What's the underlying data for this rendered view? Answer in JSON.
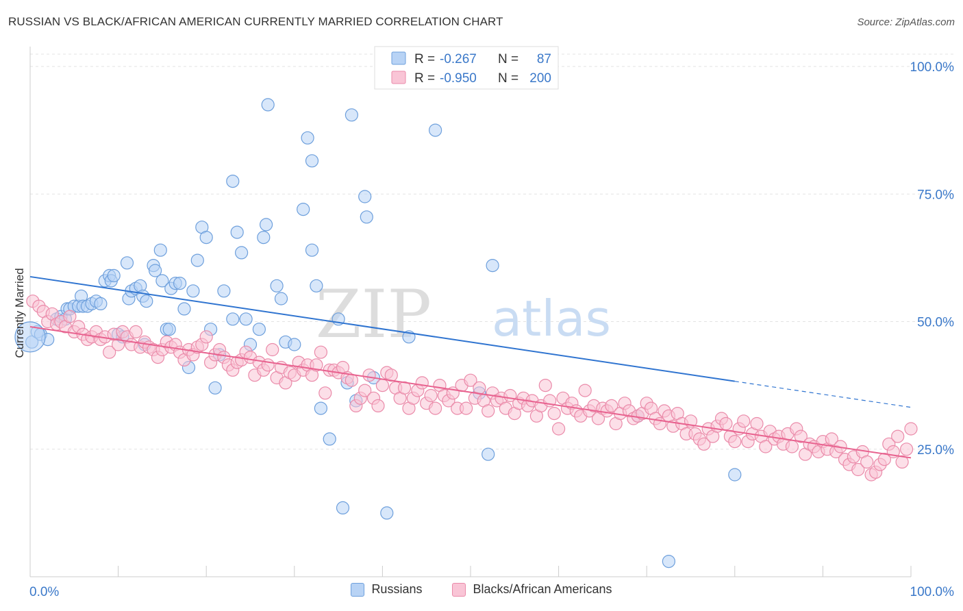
{
  "header": {
    "title": "RUSSIAN VS BLACK/AFRICAN AMERICAN CURRENTLY MARRIED CORRELATION CHART",
    "source": "Source: ZipAtlas.com"
  },
  "watermark": {
    "zip": "ZIP",
    "atlas": "atlas"
  },
  "stats": {
    "r_label": "R =",
    "n_label": "N =",
    "russians": {
      "r": "-0.267",
      "n": "87"
    },
    "blacks": {
      "r": "-0.950",
      "n": "200"
    }
  },
  "legend": {
    "russians": "Russians",
    "blacks": "Blacks/African Americans"
  },
  "colors": {
    "blue_fill": "#b8d3f5",
    "blue_stroke": "#6d9fdc",
    "blue_line": "#2f74d0",
    "pink_fill": "#f9c5d6",
    "pink_stroke": "#ea8aa9",
    "pink_line": "#e8628f",
    "accent_text": "#3a78c9"
  },
  "chart_data": {
    "type": "scatter",
    "title": "RUSSIAN VS BLACK/AFRICAN AMERICAN CURRENTLY MARRIED CORRELATION CHART",
    "xlabel": "",
    "ylabel": "Currently Married",
    "xlim": [
      0,
      100
    ],
    "ylim": [
      0,
      103
    ],
    "x_tick_labels": [
      "0.0%",
      "100.0%"
    ],
    "y_ticks": [
      25,
      50,
      75,
      100
    ],
    "y_tick_labels": [
      "25.0%",
      "50.0%",
      "75.0%",
      "100.0%"
    ],
    "grid": true,
    "series": [
      {
        "name": "Russians",
        "r": -0.267,
        "n": 87,
        "trend": {
          "x0": 0,
          "y0": 58.8,
          "x1": 80,
          "y1": 38.3,
          "dash_to_x": 100,
          "dash_to_y": 33.2
        },
        "points": [
          [
            0.2,
            46
          ],
          [
            0.8,
            48
          ],
          [
            1.2,
            47.5
          ],
          [
            2,
            46.5
          ],
          [
            3,
            50.5
          ],
          [
            3.5,
            51
          ],
          [
            4,
            50.5
          ],
          [
            4.2,
            52.5
          ],
          [
            4.5,
            52.5
          ],
          [
            5,
            53
          ],
          [
            5.5,
            53
          ],
          [
            5.8,
            55
          ],
          [
            6,
            53
          ],
          [
            6.5,
            53
          ],
          [
            7,
            53.5
          ],
          [
            7.5,
            54
          ],
          [
            8,
            53.5
          ],
          [
            8.5,
            58
          ],
          [
            9,
            59
          ],
          [
            9.2,
            58
          ],
          [
            9.5,
            59
          ],
          [
            10,
            47.5
          ],
          [
            10.5,
            47
          ],
          [
            11,
            61.5
          ],
          [
            11.2,
            54.5
          ],
          [
            11.5,
            56
          ],
          [
            12,
            56.5
          ],
          [
            12.5,
            57
          ],
          [
            12.8,
            55
          ],
          [
            13,
            45.5
          ],
          [
            13.2,
            54
          ],
          [
            14,
            61
          ],
          [
            14.2,
            60
          ],
          [
            14.8,
            64
          ],
          [
            15,
            58
          ],
          [
            15.5,
            48.5
          ],
          [
            15.8,
            48.5
          ],
          [
            16,
            56.5
          ],
          [
            16.5,
            57.5
          ],
          [
            17,
            57.5
          ],
          [
            17.5,
            52.5
          ],
          [
            18,
            41
          ],
          [
            18.5,
            56
          ],
          [
            19,
            62
          ],
          [
            19.5,
            68.5
          ],
          [
            20,
            66.5
          ],
          [
            20.5,
            48.5
          ],
          [
            21,
            37
          ],
          [
            21.5,
            43.5
          ],
          [
            22,
            56
          ],
          [
            23,
            77.5
          ],
          [
            23.5,
            67.5
          ],
          [
            24,
            63.5
          ],
          [
            23,
            50.5
          ],
          [
            24.5,
            50.5
          ],
          [
            25,
            45.5
          ],
          [
            26,
            48.5
          ],
          [
            26.5,
            66.5
          ],
          [
            26.8,
            69
          ],
          [
            27,
            92.5
          ],
          [
            28,
            57
          ],
          [
            28.5,
            54.5
          ],
          [
            29,
            46
          ],
          [
            30,
            45.5
          ],
          [
            31,
            72
          ],
          [
            31.5,
            86
          ],
          [
            32,
            64
          ],
          [
            32,
            81.5
          ],
          [
            32.5,
            57
          ],
          [
            33,
            33
          ],
          [
            34,
            27
          ],
          [
            35,
            50.5
          ],
          [
            35.5,
            13.5
          ],
          [
            36,
            38
          ],
          [
            36.5,
            90.5
          ],
          [
            37,
            34.5
          ],
          [
            38,
            74.5
          ],
          [
            38.2,
            70.5
          ],
          [
            39,
            39
          ],
          [
            40.5,
            12.5
          ],
          [
            43,
            47
          ],
          [
            46,
            87.5
          ],
          [
            51,
            36
          ],
          [
            52,
            24
          ],
          [
            52.5,
            61
          ],
          [
            69,
            31.5
          ],
          [
            80,
            20
          ],
          [
            72.5,
            3
          ]
        ]
      },
      {
        "name": "Blacks/African Americans",
        "r": -0.95,
        "n": 200,
        "trend": {
          "x0": 0,
          "y0": 49,
          "x1": 100,
          "y1": 23.3
        },
        "points": [
          [
            0.3,
            54
          ],
          [
            1,
            53
          ],
          [
            1.5,
            52
          ],
          [
            2,
            50
          ],
          [
            2.5,
            51.5
          ],
          [
            3,
            49.5
          ],
          [
            3.5,
            50
          ],
          [
            4,
            49
          ],
          [
            4.5,
            51
          ],
          [
            5,
            48
          ],
          [
            5.5,
            49
          ],
          [
            6,
            47.5
          ],
          [
            6.5,
            46.5
          ],
          [
            7,
            47
          ],
          [
            7.5,
            48
          ],
          [
            8,
            46.5
          ],
          [
            8.5,
            47
          ],
          [
            9,
            44
          ],
          [
            9.5,
            47.5
          ],
          [
            10,
            45.5
          ],
          [
            10.5,
            48
          ],
          [
            11,
            47
          ],
          [
            11.5,
            45.5
          ],
          [
            12,
            48
          ],
          [
            12.5,
            45
          ],
          [
            13,
            46
          ],
          [
            13.5,
            45
          ],
          [
            14,
            44.5
          ],
          [
            14.5,
            43
          ],
          [
            15,
            44.5
          ],
          [
            15.5,
            46
          ],
          [
            16,
            45
          ],
          [
            16.5,
            45.5
          ],
          [
            17,
            44
          ],
          [
            17.5,
            42.5
          ],
          [
            18,
            44.5
          ],
          [
            18.5,
            43.5
          ],
          [
            19,
            45
          ],
          [
            19.5,
            45.5
          ],
          [
            20,
            47
          ],
          [
            20.5,
            42
          ],
          [
            21,
            43.5
          ],
          [
            21.5,
            44.5
          ],
          [
            22,
            43
          ],
          [
            22.5,
            41.5
          ],
          [
            23,
            40.5
          ],
          [
            23.5,
            42
          ],
          [
            24,
            42.5
          ],
          [
            24.5,
            44
          ],
          [
            25,
            43
          ],
          [
            25.5,
            39.5
          ],
          [
            26,
            42
          ],
          [
            26.5,
            40.5
          ],
          [
            27,
            41.5
          ],
          [
            27.5,
            44.5
          ],
          [
            28,
            39
          ],
          [
            28.5,
            41
          ],
          [
            29,
            38
          ],
          [
            29.5,
            40
          ],
          [
            30,
            39.5
          ],
          [
            30.5,
            42
          ],
          [
            31,
            40.5
          ],
          [
            31.5,
            41.5
          ],
          [
            32,
            39.5
          ],
          [
            32.5,
            41.5
          ],
          [
            33,
            44
          ],
          [
            33.5,
            36
          ],
          [
            34,
            40.5
          ],
          [
            34.5,
            40.5
          ],
          [
            35,
            40
          ],
          [
            35.5,
            41
          ],
          [
            36,
            39
          ],
          [
            36.5,
            38.5
          ],
          [
            37,
            33.5
          ],
          [
            37.5,
            35
          ],
          [
            38,
            36.5
          ],
          [
            38.5,
            39.5
          ],
          [
            39,
            35
          ],
          [
            39.5,
            33.5
          ],
          [
            40,
            37.5
          ],
          [
            40.5,
            40
          ],
          [
            41,
            39.5
          ],
          [
            41.5,
            37
          ],
          [
            42,
            35
          ],
          [
            42.5,
            37
          ],
          [
            43,
            33
          ],
          [
            43.5,
            35
          ],
          [
            44,
            36.5
          ],
          [
            44.5,
            38
          ],
          [
            45,
            34
          ],
          [
            45.5,
            35.5
          ],
          [
            46,
            33
          ],
          [
            46.5,
            37.5
          ],
          [
            47,
            35.5
          ],
          [
            47.5,
            34.5
          ],
          [
            48,
            36
          ],
          [
            48.5,
            33
          ],
          [
            49,
            37.5
          ],
          [
            49.5,
            33
          ],
          [
            50,
            38.5
          ],
          [
            50.5,
            35
          ],
          [
            51,
            37
          ],
          [
            51.5,
            34.5
          ],
          [
            52,
            32.5
          ],
          [
            52.5,
            36
          ],
          [
            53,
            34.5
          ],
          [
            53.5,
            35
          ],
          [
            54,
            33
          ],
          [
            54.5,
            35.5
          ],
          [
            55,
            32
          ],
          [
            55.5,
            34
          ],
          [
            56,
            35
          ],
          [
            56.5,
            33.5
          ],
          [
            57,
            34.5
          ],
          [
            57.5,
            31.5
          ],
          [
            58,
            33.5
          ],
          [
            58.5,
            37.5
          ],
          [
            59,
            34.5
          ],
          [
            59.5,
            32
          ],
          [
            60,
            29
          ],
          [
            60.5,
            35
          ],
          [
            61,
            33
          ],
          [
            61.5,
            34
          ],
          [
            62,
            32.5
          ],
          [
            62.5,
            31.5
          ],
          [
            63,
            36.5
          ],
          [
            63.5,
            32.5
          ],
          [
            64,
            33.5
          ],
          [
            64.5,
            31
          ],
          [
            65,
            33
          ],
          [
            65.5,
            32.5
          ],
          [
            66,
            33.5
          ],
          [
            66.5,
            30
          ],
          [
            67,
            32
          ],
          [
            67.5,
            34
          ],
          [
            68,
            32.5
          ],
          [
            68.5,
            31
          ],
          [
            69,
            31.5
          ],
          [
            69.5,
            32
          ],
          [
            70,
            34
          ],
          [
            70.5,
            33
          ],
          [
            71,
            31
          ],
          [
            71.5,
            30
          ],
          [
            72,
            32.5
          ],
          [
            72.5,
            31.5
          ],
          [
            73,
            29.5
          ],
          [
            73.5,
            32
          ],
          [
            74,
            30
          ],
          [
            74.5,
            28
          ],
          [
            75,
            30.5
          ],
          [
            75.5,
            28
          ],
          [
            76,
            27
          ],
          [
            76.5,
            26
          ],
          [
            77,
            29
          ],
          [
            77.5,
            27.5
          ],
          [
            78,
            29.5
          ],
          [
            78.5,
            31
          ],
          [
            79,
            30
          ],
          [
            79.5,
            27.5
          ],
          [
            80,
            26.5
          ],
          [
            80.5,
            29
          ],
          [
            81,
            30.5
          ],
          [
            81.5,
            26.5
          ],
          [
            82,
            28
          ],
          [
            82.5,
            30
          ],
          [
            83,
            27.5
          ],
          [
            83.5,
            25.5
          ],
          [
            84,
            28.5
          ],
          [
            84.5,
            27
          ],
          [
            85,
            27.5
          ],
          [
            85.5,
            26
          ],
          [
            86,
            28
          ],
          [
            86.5,
            25.5
          ],
          [
            87,
            29
          ],
          [
            87.5,
            27.5
          ],
          [
            88,
            24
          ],
          [
            88.5,
            26
          ],
          [
            89,
            25.5
          ],
          [
            89.5,
            24.5
          ],
          [
            90,
            26.5
          ],
          [
            90.5,
            25
          ],
          [
            91,
            27
          ],
          [
            91.5,
            24.5
          ],
          [
            92,
            25.5
          ],
          [
            92.5,
            23
          ],
          [
            93,
            22
          ],
          [
            93.5,
            23.5
          ],
          [
            94,
            21
          ],
          [
            94.5,
            24.5
          ],
          [
            95,
            22.5
          ],
          [
            95.5,
            20
          ],
          [
            96,
            20.5
          ],
          [
            96.5,
            22
          ],
          [
            97,
            23
          ],
          [
            97.5,
            26
          ],
          [
            98,
            24.5
          ],
          [
            98.5,
            27.5
          ],
          [
            99,
            22.5
          ],
          [
            99.5,
            25
          ],
          [
            100,
            29
          ]
        ]
      }
    ]
  }
}
